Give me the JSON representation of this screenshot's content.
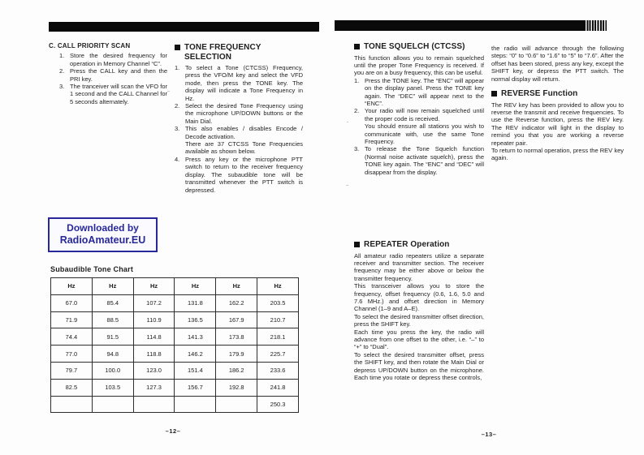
{
  "colors": {
    "bar_black": "#0a0a0a",
    "watermark_navy": "#28289a",
    "paper": "#fdfdfd"
  },
  "page_left": {
    "page_number": "–12–",
    "call_priority": {
      "heading": "C. CALL PRIORITY SCAN",
      "items": [
        "Store the desired frequency for operation in Memory Channel “C”.",
        "Press the CALL key and then the PRI key.",
        "The tranceiver will scan the VFO for 1 second and the CALL Channel for 5 seconds alternately."
      ]
    },
    "tone_frequency": {
      "title": "TONE FREQUENCY\nSELECTION",
      "items": [
        "To select a Tone (CTCSS) Frequency, press the VFO/M key and select the VFD mode, then press the TONE key. The display will indicate a Tone Frequency in Hz.",
        "Select the desired Tone Frequency using the microphone UP/DOWN buttons or the Main Dial.",
        "This also enables / disables Encode / Decode activation.\nThere are 37 CTCSS Tone Frequencies available as shown below.",
        "Press any key or the microphone PTT switch to return to the receiver frequency display. The subaudible tone will be transmitted whenever the PTT switch is depressed."
      ]
    },
    "watermark": {
      "line1": "Downloaded by",
      "line2": "RadioAmateur.EU"
    },
    "tone_chart": {
      "title": "Subaudible Tone Chart",
      "headers": [
        "Hz",
        "Hz",
        "Hz",
        "Hz",
        "Hz",
        "Hz"
      ],
      "rows": [
        [
          "67.0",
          "85.4",
          "107.2",
          "131.8",
          "162.2",
          "203.5"
        ],
        [
          "71.9",
          "88.5",
          "110.9",
          "136.5",
          "167.9",
          "210.7"
        ],
        [
          "74.4",
          "91.5",
          "114.8",
          "141.3",
          "173.8",
          "218.1"
        ],
        [
          "77.0",
          "94.8",
          "118.8",
          "146.2",
          "179.9",
          "225.7"
        ],
        [
          "79.7",
          "100.0",
          "123.0",
          "151.4",
          "186.2",
          "233.6"
        ],
        [
          "82.5",
          "103.5",
          "127.3",
          "156.7",
          "192.8",
          "241.8"
        ],
        [
          "",
          "",
          "",
          "",
          "",
          "250.3"
        ]
      ]
    }
  },
  "page_right": {
    "page_number": "–13–",
    "tone_squelch": {
      "title": "TONE SQUELCH (CTCSS)",
      "intro": "This function allows you to remain squelched until the proper Tone Frequency is received. If you are on a busy frequency, this can be useful.",
      "items": [
        "Press the TONE key. The “ENC” will appear on the display panel. Press the TONE key again. The “DEC” will appear next to the “ENC”.",
        "Your radio will now remain squelched until the proper code is received.\nYou should ensure all stations you wish to communicate with, use the same Tone Frequency.",
        "To release the Tone Squelch function (Normal noise activate squelch), press the TONE key again. The “ENC” and “DEC” will disappear from the display."
      ]
    },
    "repeater": {
      "title": "REPEATER Operation",
      "paragraphs": [
        "All amateur radio repeaters utilize a separate receiver and transmitter section. The receiver frequency may be either above or below the transmitter frequency.",
        "This transceiver allows you to store the frequency, offset frequency (0.6, 1.6, 5.0 and 7.6 MHz.) and offset direction in Memory Channel (1–9 and A–E).",
        "To select the desired transmitter offset direction, press the SHIFT key.",
        "Each time you press the key, the radio will advance from one offset to the other, i.e. “–” to “+” to “Dual”.",
        "To select the desired transmitter offset, press the SHIFT key, and then rotate the Main Dial or depress UP/DOWN button on the microphone. Each time you rotate or depress these controls,"
      ]
    },
    "continuation": "the radio will advance through the following steps: “0” to “0.6” to “1.6” to “5” to “7.6”. After the offset has been stored, press any key, except the SHIFT key, or depress the PTT switch. The normal display will return.",
    "reverse": {
      "title": "REVERSE Function",
      "paragraphs": [
        "The REV key has been provided to allow you to reverse the transmit and receive frequencies. To use the Reverse function, press the REV key. The REV indicator will light in the display to remind you that you are working a reverse repeater pair.",
        "To return to normal operation, press the REV key again."
      ]
    }
  }
}
